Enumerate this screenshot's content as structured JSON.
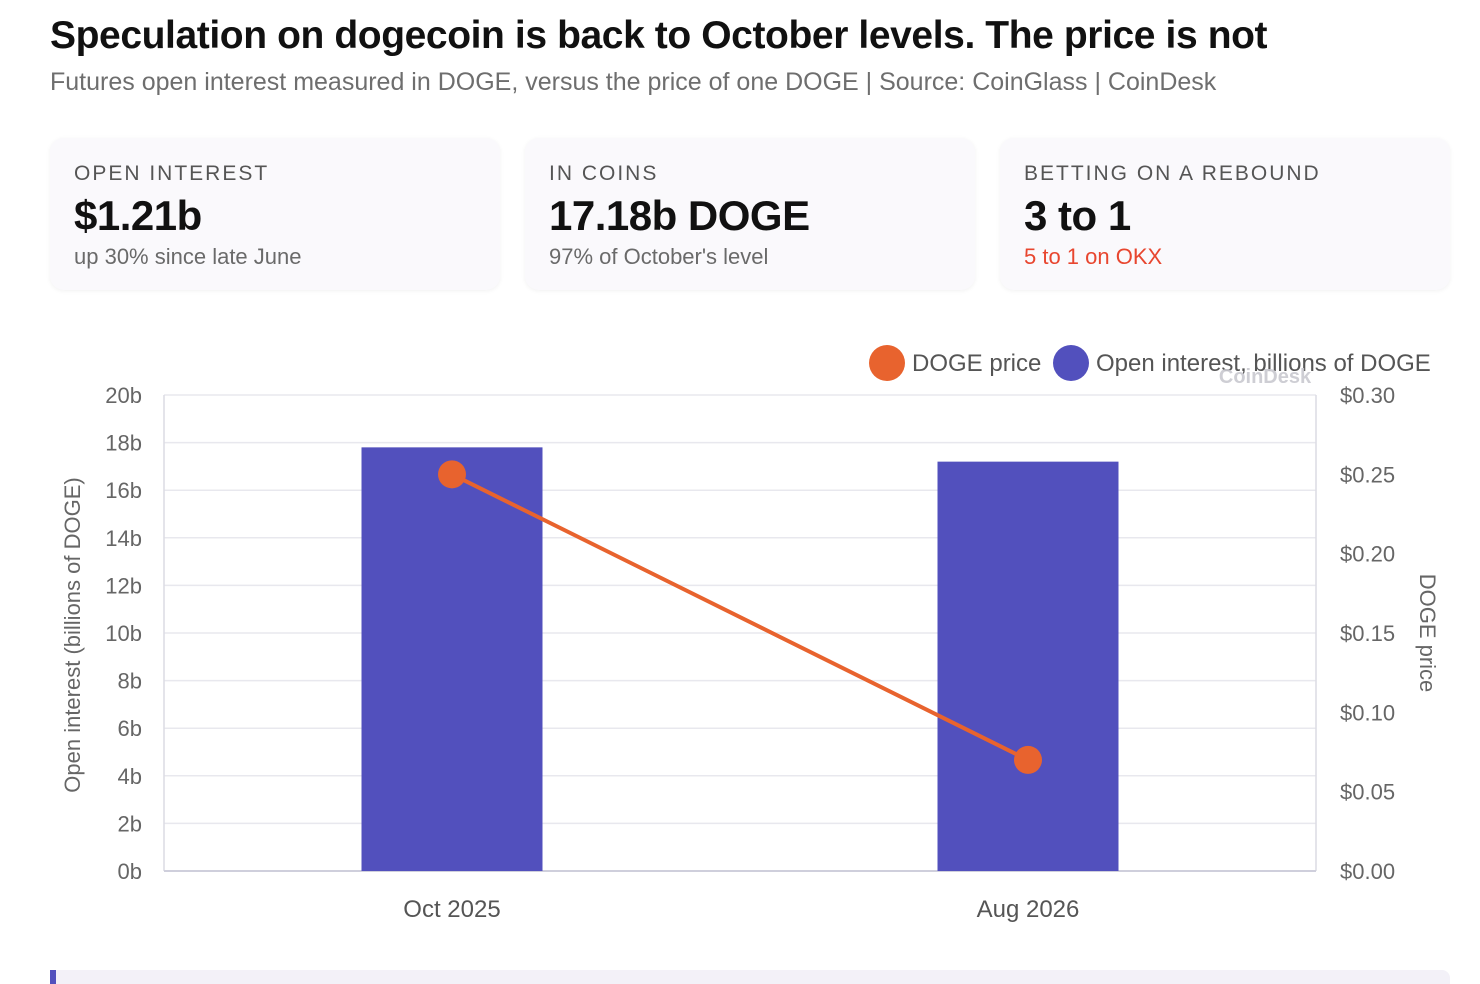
{
  "header": {
    "title": "Speculation on dogecoin is back to October levels. The price is not",
    "subtitle": "Futures open interest measured in DOGE, versus the price of one DOGE | Source: CoinGlass | CoinDesk"
  },
  "cards": [
    {
      "label": "OPEN INTEREST",
      "value": "$1.21b",
      "note": "up 30% since late June",
      "alert": false
    },
    {
      "label": "IN COINS",
      "value": "17.18b DOGE",
      "note": "97% of October's level",
      "alert": false
    },
    {
      "label": "BETTING ON A REBOUND",
      "value": "3 to 1",
      "note": "5 to 1 on OKX",
      "alert": true
    }
  ],
  "colors": {
    "bar": "#5250bd",
    "line": "#e8632e",
    "alert": "#e8462f",
    "grid": "#e8e8ee"
  },
  "watermark": "CoinDesk",
  "chart_data": {
    "type": "bar",
    "categories": [
      "Oct 2025",
      "Aug 2026"
    ],
    "series": [
      {
        "name": "Open interest, billions of DOGE",
        "type": "bar",
        "axis": "left",
        "values": [
          17.8,
          17.2
        ]
      },
      {
        "name": "DOGE price",
        "type": "line",
        "axis": "right",
        "values": [
          0.25,
          0.07
        ]
      }
    ],
    "legend": {
      "position": "top-right",
      "order": [
        "DOGE price",
        "Open interest, billions of DOGE"
      ]
    },
    "y_left": {
      "label": "Open interest (billions of DOGE)",
      "range": [
        0,
        20
      ],
      "ticks": [
        "20b",
        "18b",
        "16b",
        "14b",
        "12b",
        "10b",
        "8b",
        "6b",
        "4b",
        "2b",
        "0b"
      ]
    },
    "y_right": {
      "label": "DOGE price",
      "range": [
        0,
        0.3
      ],
      "ticks": [
        "$0.30",
        "$0.25",
        "$0.20",
        "$0.15",
        "$0.10",
        "$0.05",
        "$0.00"
      ]
    },
    "grid": true
  }
}
